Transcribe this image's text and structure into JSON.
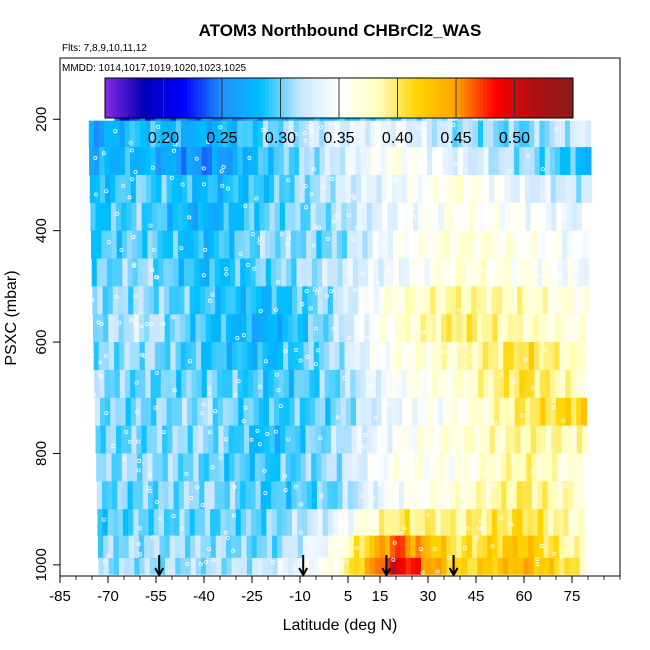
{
  "chart_data": {
    "type": "heatmap",
    "title": "ATOM3 Northbound CHBrCl2_WAS",
    "flights_label": "Flts: 7,8,9,10,11,12",
    "mmdd_label": "MMDD: 1014,1017,1019,1020,1023,1025",
    "xlabel": "Latitude (deg N)",
    "ylabel": "PSXC (mbar)",
    "xlim": [
      -85,
      90
    ],
    "ylim": [
      1020,
      90
    ],
    "x_ticks": [
      -85,
      -70,
      -55,
      -40,
      -25,
      -10,
      5,
      15,
      30,
      45,
      60,
      75
    ],
    "y_ticks": [
      200,
      400,
      600,
      800,
      1000
    ],
    "colorbar": {
      "vmin": 0.15,
      "vmax": 0.55,
      "tick_values": [
        0.2,
        0.25,
        0.3,
        0.35,
        0.4,
        0.45,
        0.5
      ],
      "tick_labels": [
        "0.20",
        "0.25",
        "0.30",
        "0.35",
        "0.40",
        "0.45",
        "0.50"
      ],
      "colors": [
        "#8a2be2",
        "#0000b8",
        "#0000ff",
        "#1e90ff",
        "#00bfff",
        "#c8e6ff",
        "#ffffff",
        "#ffffc0",
        "#ffd400",
        "#ffa500",
        "#ff0000",
        "#b01010",
        "#8b1a1a"
      ]
    },
    "arrow_latitudes": [
      -54,
      -9,
      17,
      38
    ],
    "profiles": [
      {
        "p": 180,
        "lat": [
          -70,
          -50,
          -30,
          -10,
          10,
          30,
          50
        ],
        "v": [
          0.22,
          0.24,
          0.25,
          0.27,
          0.29,
          0.31,
          0.33
        ]
      },
      {
        "p": 225,
        "lat": [
          -80,
          -60,
          -40,
          -20,
          0,
          20,
          40,
          60,
          80
        ],
        "v": [
          0.25,
          0.29,
          0.27,
          0.3,
          0.33,
          0.34,
          0.31,
          0.3,
          0.33
        ]
      },
      {
        "p": 275,
        "lat": [
          -80,
          -60,
          -40,
          -20,
          0,
          20,
          40,
          60,
          80
        ],
        "v": [
          0.27,
          0.28,
          0.25,
          0.29,
          0.32,
          0.36,
          0.33,
          0.31,
          0.28
        ]
      },
      {
        "p": 325,
        "lat": [
          -80,
          -60,
          -40,
          -20,
          0,
          20,
          40,
          60,
          80
        ],
        "v": [
          0.27,
          0.3,
          0.28,
          0.29,
          0.32,
          0.34,
          0.37,
          0.33,
          0.32
        ]
      },
      {
        "p": 375,
        "lat": [
          -80,
          -60,
          -40,
          -20,
          0,
          20,
          40,
          60,
          80
        ],
        "v": [
          0.28,
          0.3,
          0.27,
          0.3,
          0.31,
          0.34,
          0.36,
          0.35,
          0.33
        ]
      },
      {
        "p": 425,
        "lat": [
          -80,
          -60,
          -40,
          -20,
          0,
          20,
          40,
          60,
          80
        ],
        "v": [
          0.29,
          0.3,
          0.28,
          0.31,
          0.3,
          0.35,
          0.37,
          0.36,
          0.34
        ]
      },
      {
        "p": 475,
        "lat": [
          -80,
          -60,
          -40,
          -20,
          0,
          20,
          40,
          60,
          80
        ],
        "v": [
          0.29,
          0.31,
          0.28,
          0.3,
          0.32,
          0.34,
          0.37,
          0.36,
          0.34
        ]
      },
      {
        "p": 525,
        "lat": [
          -80,
          -60,
          -40,
          -20,
          0,
          20,
          40,
          60,
          80
        ],
        "v": [
          0.3,
          0.31,
          0.29,
          0.28,
          0.31,
          0.37,
          0.39,
          0.38,
          0.36
        ]
      },
      {
        "p": 575,
        "lat": [
          -80,
          -60,
          -40,
          -20,
          0,
          20,
          40,
          60,
          80
        ],
        "v": [
          0.3,
          0.32,
          0.29,
          0.27,
          0.31,
          0.37,
          0.4,
          0.38,
          0.36
        ]
      },
      {
        "p": 625,
        "lat": [
          -80,
          -60,
          -40,
          -20,
          0,
          20,
          40,
          60,
          80
        ],
        "v": [
          0.3,
          0.31,
          0.29,
          0.28,
          0.31,
          0.36,
          0.38,
          0.41,
          0.37
        ]
      },
      {
        "p": 675,
        "lat": [
          -80,
          -60,
          -40,
          -20,
          0,
          20,
          40,
          60,
          80
        ],
        "v": [
          0.31,
          0.3,
          0.3,
          0.29,
          0.3,
          0.35,
          0.37,
          0.41,
          0.37
        ]
      },
      {
        "p": 725,
        "lat": [
          -80,
          -60,
          -40,
          -20,
          0,
          20,
          40,
          60,
          80
        ],
        "v": [
          0.31,
          0.3,
          0.31,
          0.29,
          0.3,
          0.34,
          0.36,
          0.4,
          0.42
        ]
      },
      {
        "p": 775,
        "lat": [
          -80,
          -60,
          -40,
          -20,
          0,
          20,
          40,
          60,
          80
        ],
        "v": [
          0.3,
          0.3,
          0.31,
          0.28,
          0.31,
          0.35,
          0.37,
          0.39,
          0.38
        ]
      },
      {
        "p": 825,
        "lat": [
          -80,
          -60,
          -40,
          -20,
          0,
          20,
          40,
          60,
          80
        ],
        "v": [
          0.3,
          0.31,
          0.3,
          0.29,
          0.31,
          0.36,
          0.36,
          0.39,
          0.36
        ]
      },
      {
        "p": 875,
        "lat": [
          -80,
          -60,
          -40,
          -20,
          0,
          20,
          40,
          60,
          80
        ],
        "v": [
          0.3,
          0.3,
          0.31,
          0.29,
          0.3,
          0.35,
          0.37,
          0.4,
          0.37
        ]
      },
      {
        "p": 925,
        "lat": [
          -80,
          -60,
          -40,
          -20,
          0,
          20,
          40,
          60,
          80
        ],
        "v": [
          0.29,
          0.3,
          0.3,
          0.3,
          0.33,
          0.4,
          0.39,
          0.41,
          0.37
        ]
      },
      {
        "p": 970,
        "lat": [
          -80,
          -60,
          -40,
          -20,
          0,
          20,
          40,
          60,
          80
        ],
        "v": [
          0.3,
          0.31,
          0.31,
          0.3,
          0.35,
          0.47,
          0.4,
          0.43,
          0.37
        ]
      },
      {
        "p": 1005,
        "lat": [
          -80,
          -60,
          -40,
          -20,
          0,
          20,
          40,
          60,
          80
        ],
        "v": [
          0.31,
          0.31,
          0.31,
          0.32,
          0.36,
          0.5,
          0.41,
          0.44,
          0.39
        ]
      }
    ]
  }
}
